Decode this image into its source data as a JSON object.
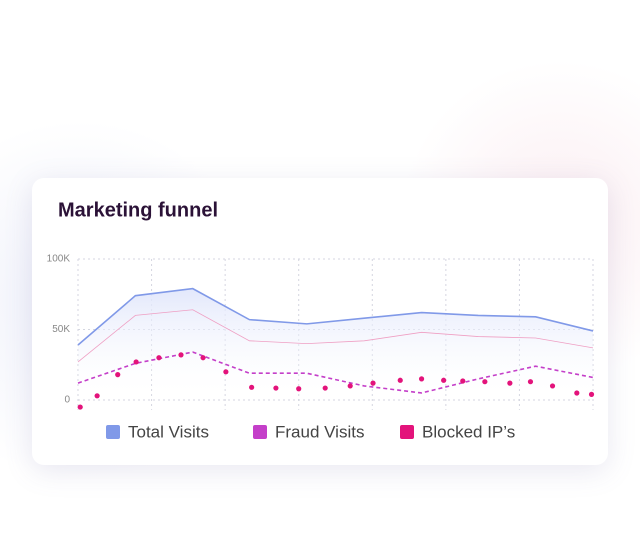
{
  "chart_data": {
    "type": "line",
    "title": "Marketing funnel",
    "xlim": [
      0,
      7
    ],
    "xticks": [
      0,
      1,
      2,
      3,
      4,
      5,
      6,
      7
    ],
    "ylim": [
      -7000,
      100000
    ],
    "yticks": [
      0,
      {
        "value": 50000,
        "label": "50K"
      },
      {
        "value": 100000,
        "label": "100K"
      }
    ],
    "grid": true,
    "legend": "bottom",
    "series": [
      {
        "name": "Total Visits",
        "color": "#8099e8",
        "style": "area",
        "x": [
          0,
          0.78,
          1.56,
          2.33,
          3.11,
          3.89,
          4.67,
          5.44,
          6.22,
          7
        ],
        "values": [
          39000,
          74000,
          79000,
          57000,
          54000,
          58000,
          62000,
          60000,
          59000,
          49000
        ]
      },
      {
        "color": "#ef9fc3",
        "style": "thin",
        "x": [
          0,
          0.78,
          1.56,
          2.33,
          3.11,
          3.89,
          4.67,
          5.44,
          6.22,
          7
        ],
        "values": [
          27000,
          60000,
          64000,
          42000,
          40000,
          42000,
          48000,
          45000,
          44000,
          37000
        ]
      },
      {
        "name": "Fraud Visits",
        "color": "#c43fc9",
        "style": "dashed",
        "x": [
          0,
          0.78,
          1.56,
          2.33,
          3.11,
          3.89,
          4.67,
          5.44,
          6.22,
          7
        ],
        "values": [
          12000,
          26000,
          34000,
          19000,
          19000,
          10000,
          5000,
          15000,
          24000,
          16000
        ]
      },
      {
        "name": "Blocked IP’s",
        "color": "#e3137b",
        "style": "dots",
        "x": [
          0.03,
          0.26,
          0.54,
          0.79,
          1.1,
          1.4,
          1.7,
          2.01,
          2.36,
          2.69,
          3.0,
          3.36,
          3.7,
          4.01,
          4.38,
          4.67,
          4.97,
          5.23,
          5.53,
          5.87,
          6.15,
          6.45,
          6.78,
          6.98
        ],
        "values": [
          -5000,
          3000,
          18000,
          27000,
          30000,
          32000,
          30000,
          20000,
          9000,
          8500,
          8000,
          8500,
          10000,
          12000,
          14000,
          15000,
          14000,
          13500,
          13000,
          12000,
          13000,
          10000,
          5000,
          4000
        ]
      }
    ]
  }
}
